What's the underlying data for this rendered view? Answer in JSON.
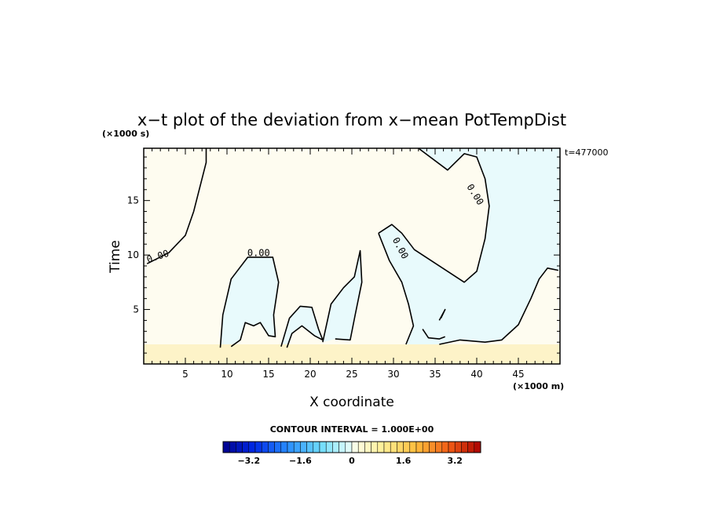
{
  "chart_data": {
    "type": "heatmap",
    "title": "x−t plot of the deviation from x−mean PotTempDist",
    "xlabel": "X coordinate",
    "ylabel": "Time",
    "x_unit": "(×1000 m)",
    "y_unit": "(×1000 s)",
    "annotation": "t=477000",
    "xlim": [
      0,
      50
    ],
    "ylim": [
      0,
      19.8
    ],
    "x_ticks": [
      5,
      10,
      15,
      20,
      25,
      30,
      35,
      40,
      45
    ],
    "y_ticks": [
      5,
      10,
      15
    ],
    "contour_interval_text": "CONTOUR INTERVAL = 1.000E+00",
    "contour_labels": [
      {
        "text": "0.00",
        "x": 1.8,
        "y": 9.6,
        "angle": -18
      },
      {
        "text": "0.00",
        "x": 13.8,
        "y": 9.9,
        "angle": 0
      },
      {
        "text": "0.00",
        "x": 30.5,
        "y": 10.5,
        "angle": 62
      },
      {
        "text": "0.00",
        "x": 39.5,
        "y": 15.4,
        "angle": 58
      }
    ],
    "zero_contours": [
      [
        [
          0.4,
          9.2
        ],
        [
          3.0,
          10.2
        ],
        [
          5.0,
          11.8
        ],
        [
          6.0,
          14.0
        ],
        [
          7.0,
          17.0
        ],
        [
          7.5,
          18.5
        ],
        [
          7.5,
          19.8
        ]
      ],
      [
        [
          9.2,
          1.5
        ],
        [
          9.5,
          4.5
        ],
        [
          10.5,
          7.8
        ],
        [
          12.5,
          9.8
        ],
        [
          15.5,
          9.8
        ],
        [
          16.2,
          7.5
        ],
        [
          15.6,
          4.5
        ],
        [
          15.8,
          2.5
        ],
        [
          15.0,
          2.6
        ],
        [
          14.0,
          3.8
        ],
        [
          13.2,
          3.5
        ],
        [
          12.2,
          3.8
        ],
        [
          11.6,
          2.2
        ],
        [
          10.5,
          1.6
        ]
      ],
      [
        [
          16.5,
          1.6
        ],
        [
          17.5,
          4.2
        ],
        [
          18.8,
          5.3
        ],
        [
          20.2,
          5.2
        ],
        [
          21.0,
          3.2
        ],
        [
          21.5,
          2.2
        ],
        [
          20.5,
          2.6
        ],
        [
          19.0,
          3.5
        ],
        [
          17.8,
          2.8
        ],
        [
          17.2,
          1.5
        ]
      ],
      [
        [
          21.5,
          2.0
        ],
        [
          22.5,
          5.5
        ],
        [
          24.0,
          7.0
        ],
        [
          25.3,
          8.0
        ],
        [
          26.0,
          10.4
        ],
        [
          26.2,
          7.5
        ],
        [
          25.4,
          4.5
        ],
        [
          24.8,
          2.2
        ],
        [
          23.0,
          2.3
        ]
      ],
      [
        [
          28.2,
          12.0
        ],
        [
          29.8,
          12.8
        ],
        [
          31.0,
          12.0
        ],
        [
          32.5,
          10.5
        ],
        [
          34.5,
          9.5
        ],
        [
          36.5,
          8.5
        ],
        [
          38.5,
          7.5
        ],
        [
          40.0,
          8.5
        ],
        [
          41.0,
          11.5
        ],
        [
          41.5,
          14.5
        ],
        [
          41.0,
          17.0
        ],
        [
          40.0,
          19.0
        ],
        [
          38.5,
          19.3
        ],
        [
          36.5,
          17.8
        ],
        [
          33.0,
          19.8
        ]
      ],
      [
        [
          28.2,
          12.0
        ],
        [
          29.5,
          9.5
        ],
        [
          31.0,
          7.5
        ],
        [
          31.8,
          5.5
        ],
        [
          32.4,
          3.5
        ],
        [
          31.5,
          1.8
        ]
      ],
      [
        [
          35.5,
          1.8
        ],
        [
          38.0,
          2.2
        ],
        [
          41.0,
          2.0
        ],
        [
          43.0,
          2.2
        ],
        [
          45.0,
          3.6
        ],
        [
          46.5,
          6.0
        ],
        [
          47.5,
          7.8
        ],
        [
          48.5,
          8.8
        ],
        [
          49.8,
          8.6
        ]
      ],
      [
        [
          33.5,
          3.2
        ],
        [
          34.2,
          2.4
        ],
        [
          35.5,
          2.3
        ],
        [
          36.2,
          2.5
        ]
      ],
      [
        [
          35.5,
          4.0
        ],
        [
          36.2,
          5.0
        ],
        [
          35.7,
          4.2
        ]
      ]
    ],
    "colorbar": {
      "min": -4.0,
      "max": 4.0,
      "bins": 40,
      "tick_labels": [
        "−3.2",
        "−1.6",
        "0",
        "1.6",
        "3.2"
      ],
      "tick_values": [
        -3.2,
        -1.6,
        0,
        1.6,
        3.2
      ]
    },
    "field_regions": [
      {
        "value": 0.3,
        "x": [
          0,
          50
        ],
        "y": [
          0,
          19.8
        ]
      },
      {
        "value": 0.9,
        "x": [
          0,
          50
        ],
        "y": [
          0,
          1.8
        ]
      },
      {
        "value": -0.3,
        "x": [
          12.0,
          50
        ],
        "y": [
          1.8,
          19.8
        ]
      }
    ]
  }
}
